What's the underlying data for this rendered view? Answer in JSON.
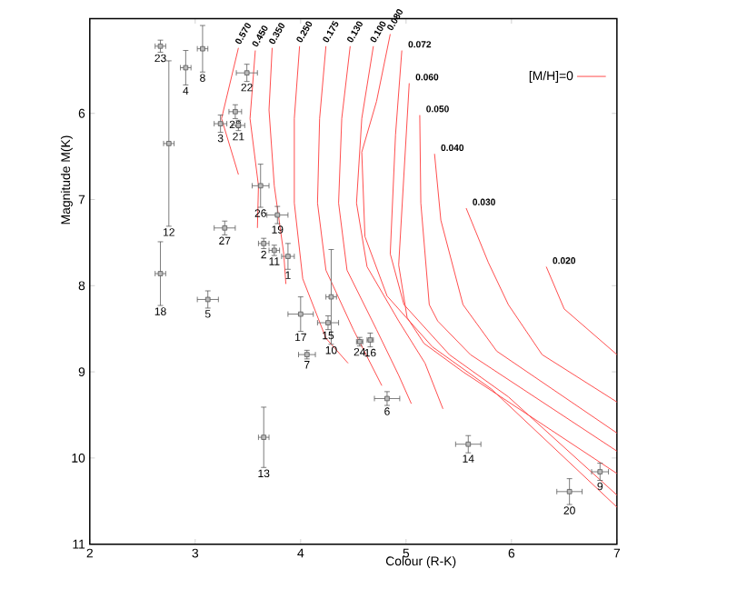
{
  "chart_data": {
    "type": "scatter",
    "xlabel": "Colour (R-K)",
    "ylabel": "Magnitude M(K)",
    "xlim": [
      2,
      7
    ],
    "ylim": [
      11,
      4.9
    ],
    "xticks": [
      2,
      3,
      4,
      5,
      6,
      7
    ],
    "yticks": [
      6,
      7,
      8,
      9,
      10,
      11
    ],
    "legend": "top right",
    "marker": "square",
    "series": [
      {
        "type": "line",
        "marker": "none",
        "name": "[M/H]=0",
        "color": "#ff4040",
        "x": [
          3.41,
          3.25,
          3.41
        ],
        "values": [
          5.24,
          6.06,
          6.71
        ]
      },
      {
        "type": "line",
        "marker": "none",
        "color": "#ff4040",
        "x": [
          3.57,
          3.52,
          3.6,
          3.59
        ],
        "values": [
          5.27,
          6.06,
          6.84,
          7.33
        ]
      },
      {
        "type": "line",
        "marker": "none",
        "color": "#ff4040",
        "x": [
          3.73,
          3.7,
          3.75,
          3.84,
          3.86
        ],
        "values": [
          5.24,
          5.96,
          6.84,
          7.63,
          7.98
        ]
      },
      {
        "type": "line",
        "marker": "none",
        "color": "#ff4040",
        "x": [
          3.99,
          3.94,
          3.94,
          4.02,
          4.24,
          4.45
        ],
        "values": [
          5.22,
          6.06,
          7.04,
          7.92,
          8.61,
          8.9
        ]
      },
      {
        "type": "line",
        "marker": "none",
        "color": "#ff4040",
        "x": [
          4.24,
          4.18,
          4.16,
          4.24,
          4.5,
          4.77
        ],
        "values": [
          5.22,
          6.06,
          7.04,
          7.82,
          8.51,
          9.16
        ]
      },
      {
        "type": "line",
        "marker": "none",
        "color": "#ff4040",
        "x": [
          4.47,
          4.39,
          4.36,
          4.44,
          4.72,
          4.93,
          5.05
        ],
        "values": [
          5.22,
          6.06,
          7.04,
          7.82,
          8.51,
          9.04,
          9.37
        ]
      },
      {
        "type": "line",
        "marker": "none",
        "color": "#ff4040",
        "x": [
          4.69,
          4.58,
          4.53,
          4.63,
          4.93,
          5.18,
          5.35
        ],
        "values": [
          5.22,
          6.06,
          7.04,
          7.78,
          8.41,
          8.9,
          9.43
        ]
      },
      {
        "type": "line",
        "marker": "none",
        "color": "#ff4040",
        "x": [
          4.85,
          4.72,
          4.58,
          4.61,
          4.82,
          5.25,
          5.81,
          7.0
        ],
        "values": [
          5.08,
          5.86,
          6.45,
          7.43,
          8.12,
          8.71,
          9.2,
          10.57
        ]
      },
      {
        "type": "line",
        "marker": "none",
        "color": "#ff4040",
        "x": [
          4.96,
          4.9,
          4.85,
          4.98,
          5.41,
          5.97,
          7.0
        ],
        "values": [
          5.27,
          6.25,
          7.63,
          8.22,
          8.8,
          9.29,
          10.43
        ]
      },
      {
        "type": "line",
        "marker": "none",
        "color": "#ff4040",
        "x": [
          5.03,
          4.93,
          5.01,
          5.17,
          5.54,
          7.0
        ],
        "values": [
          5.65,
          7.76,
          8.37,
          8.67,
          9.0,
          10.18
        ]
      },
      {
        "type": "line",
        "marker": "none",
        "color": "#ff4040",
        "x": [
          5.13,
          5.14,
          5.22,
          5.3,
          5.61,
          7.0
        ],
        "values": [
          6.02,
          7.04,
          8.22,
          8.41,
          8.8,
          9.92
        ]
      },
      {
        "type": "line",
        "marker": "none",
        "color": "#ff4040",
        "x": [
          5.27,
          5.33,
          5.54,
          5.86,
          7.0
        ],
        "values": [
          6.47,
          7.24,
          8.22,
          8.76,
          9.71
        ]
      },
      {
        "type": "line",
        "marker": "none",
        "color": "#ff4040",
        "x": [
          5.57,
          5.78,
          5.97,
          6.29,
          7.0
        ],
        "values": [
          7.1,
          7.73,
          8.22,
          8.8,
          9.35
        ]
      },
      {
        "type": "line",
        "marker": "none",
        "color": "#ff4040",
        "x": [
          6.33,
          6.5,
          7.0
        ],
        "values": [
          7.78,
          8.27,
          8.8
        ]
      },
      {
        "color": "#505050",
        "x": [
          2.67,
          2.91,
          3.07,
          3.49,
          3.24,
          3.38,
          3.41,
          2.75,
          3.62,
          3.78,
          3.28,
          3.65,
          3.75,
          3.88,
          2.67,
          3.12,
          4.29,
          4.26,
          4.0,
          4.06,
          4.56,
          4.66,
          4.82,
          3.65,
          5.59,
          6.84,
          6.55
        ],
        "values": [
          5.22,
          5.47,
          5.25,
          5.53,
          6.12,
          5.98,
          6.14,
          6.35,
          6.84,
          7.18,
          7.33,
          7.51,
          7.59,
          7.66,
          7.86,
          8.16,
          8.13,
          8.43,
          8.33,
          8.8,
          8.65,
          8.63,
          9.31,
          9.76,
          9.84,
          10.16,
          10.39
        ],
        "errors": [
          0.07,
          0.2,
          0.27,
          0.1,
          0.1,
          0.08,
          0.06,
          0.96,
          0.25,
          0.1,
          0.08,
          0.06,
          0.06,
          0.15,
          0.37,
          0.1,
          0.55,
          0.08,
          0.2,
          0.05,
          0.05,
          0.08,
          0.08,
          0.35,
          0.1,
          0.1,
          0.15
        ],
        "xerrors": [
          0.05,
          0.05,
          0.05,
          0.1,
          0.06,
          0.06,
          0.06,
          0.05,
          0.08,
          0.1,
          0.1,
          0.05,
          0.05,
          0.06,
          0.05,
          0.1,
          0.05,
          0.1,
          0.12,
          0.08,
          0.03,
          0.03,
          0.12,
          0.05,
          0.12,
          0.08,
          0.12
        ]
      }
    ],
    "annotations": [
      {
        "text": "0.570",
        "x": 3.41,
        "y": 5.24
      },
      {
        "text": "0.450",
        "x": 3.57,
        "y": 5.27
      },
      {
        "text": "0.350",
        "x": 3.73,
        "y": 5.24
      },
      {
        "text": "0.250",
        "x": 3.99,
        "y": 5.22
      },
      {
        "text": "0.175",
        "x": 4.24,
        "y": 5.22
      },
      {
        "text": "0.130",
        "x": 4.47,
        "y": 5.22
      },
      {
        "text": "0.100",
        "x": 4.69,
        "y": 5.22
      },
      {
        "text": "0.080",
        "x": 4.85,
        "y": 5.08
      },
      {
        "text": "0.072",
        "x": 4.96,
        "y": 5.27
      },
      {
        "text": "0.060",
        "x": 5.03,
        "y": 5.65
      },
      {
        "text": "0.050",
        "x": 5.13,
        "y": 6.02
      },
      {
        "text": "0.040",
        "x": 5.27,
        "y": 6.47
      },
      {
        "text": "0.030",
        "x": 5.57,
        "y": 7.1
      },
      {
        "text": "0.020",
        "x": 6.33,
        "y": 7.78
      },
      {
        "text": "23",
        "x": 2.67,
        "y": 5.29
      },
      {
        "text": "4",
        "x": 2.91,
        "y": 5.67
      },
      {
        "text": "8",
        "x": 3.07,
        "y": 5.52
      },
      {
        "text": "22",
        "x": 3.49,
        "y": 5.63
      },
      {
        "text": "3",
        "x": 3.24,
        "y": 6.22
      },
      {
        "text": "28",
        "x": 3.38,
        "y": 6.06
      },
      {
        "text": "21",
        "x": 3.41,
        "y": 6.2
      },
      {
        "text": "12",
        "x": 2.75,
        "y": 7.31
      },
      {
        "text": "26",
        "x": 3.62,
        "y": 7.09
      },
      {
        "text": "19",
        "x": 3.78,
        "y": 7.28
      },
      {
        "text": "27",
        "x": 3.28,
        "y": 7.41
      },
      {
        "text": "2",
        "x": 3.65,
        "y": 7.57
      },
      {
        "text": "11",
        "x": 3.75,
        "y": 7.65
      },
      {
        "text": "1",
        "x": 3.88,
        "y": 7.81
      },
      {
        "text": "18",
        "x": 2.67,
        "y": 8.23
      },
      {
        "text": "5",
        "x": 3.12,
        "y": 8.26
      },
      {
        "text": "10",
        "x": 4.29,
        "y": 8.68
      },
      {
        "text": "15",
        "x": 4.26,
        "y": 8.51
      },
      {
        "text": "17",
        "x": 4.0,
        "y": 8.53
      },
      {
        "text": "7",
        "x": 4.06,
        "y": 8.85
      },
      {
        "text": "24",
        "x": 4.56,
        "y": 8.7
      },
      {
        "text": "16",
        "x": 4.66,
        "y": 8.71
      },
      {
        "text": "6",
        "x": 4.82,
        "y": 9.39
      },
      {
        "text": "13",
        "x": 3.65,
        "y": 10.11
      },
      {
        "text": "14",
        "x": 5.59,
        "y": 9.94
      },
      {
        "text": "9",
        "x": 6.84,
        "y": 10.26
      },
      {
        "text": "20",
        "x": 6.55,
        "y": 10.54
      }
    ]
  }
}
